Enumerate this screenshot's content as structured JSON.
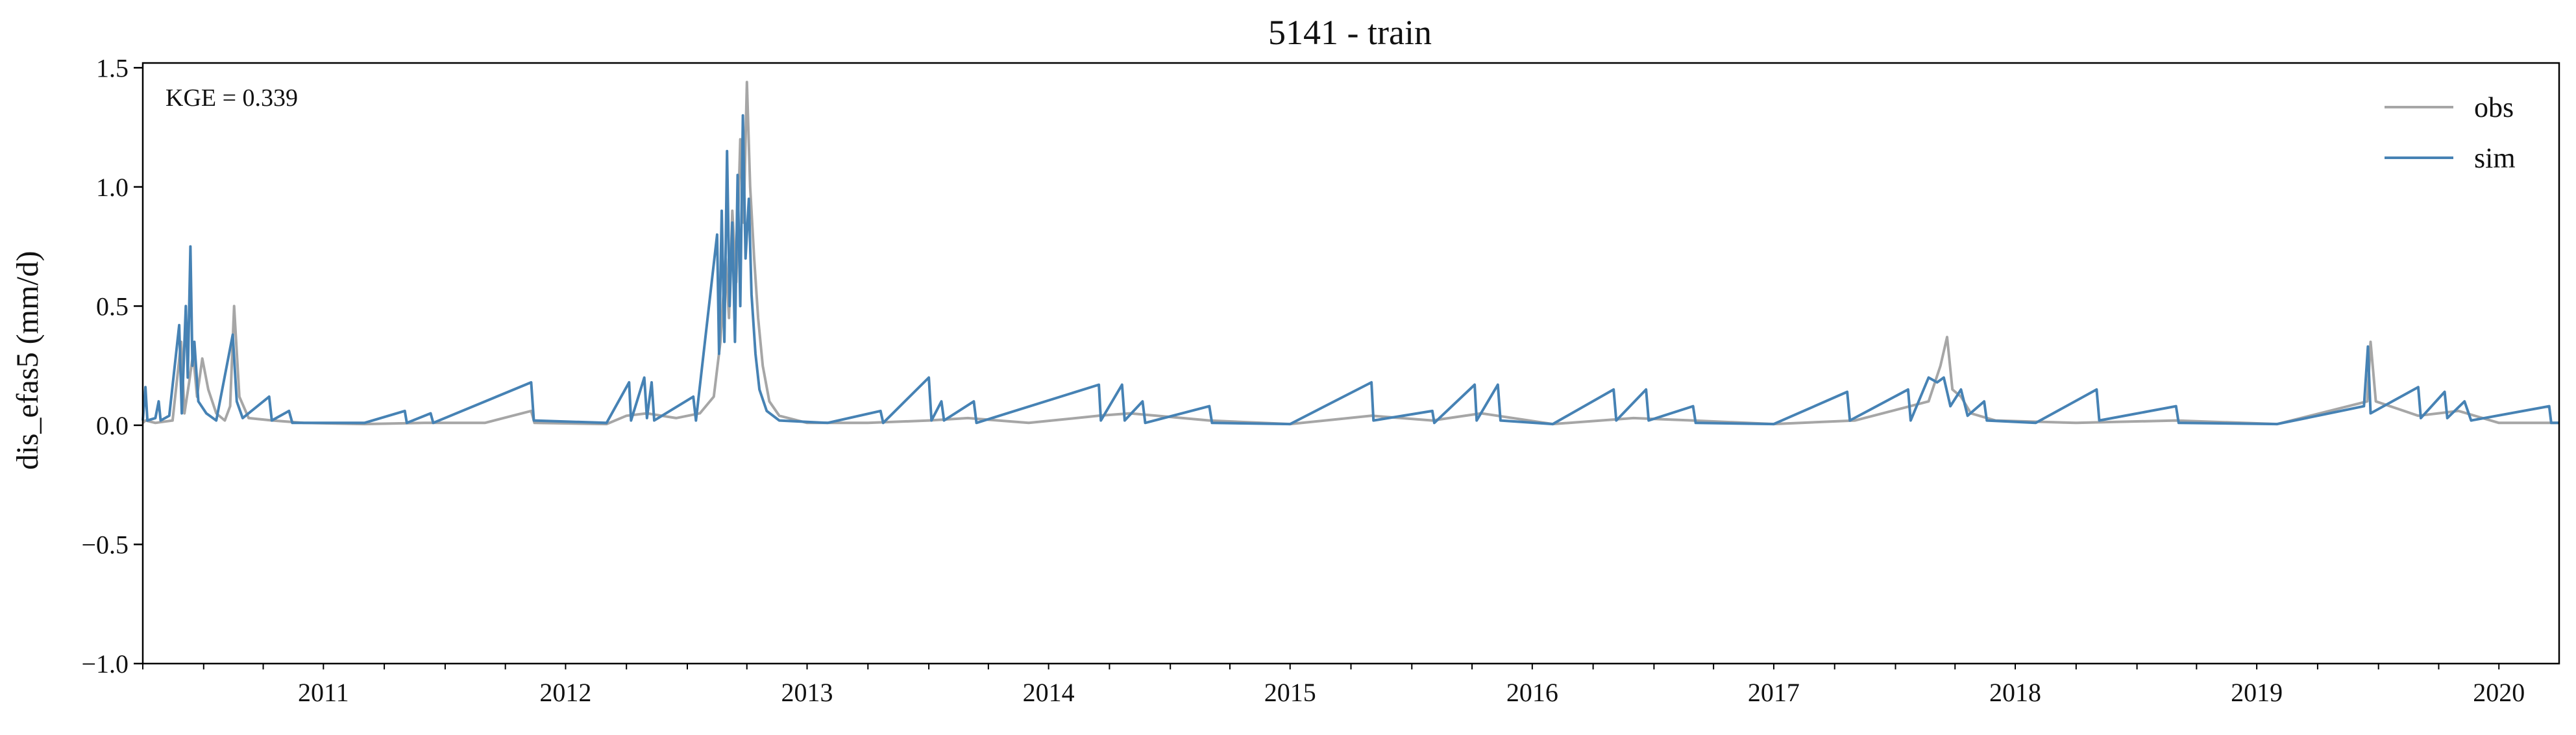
{
  "chart_data": {
    "type": "line",
    "title": "5141 - train",
    "xlabel": "",
    "ylabel": "dis_efas5 (mm/d)",
    "annotation": "KGE = 0.339",
    "legend_position": "top-right",
    "grid": false,
    "xlim": [
      "2010-10-01",
      "2020-09-30"
    ],
    "ylim": [
      -1.0,
      1.52
    ],
    "y_ticks": [
      -1.0,
      -0.5,
      0.0,
      0.5,
      1.0,
      1.5
    ],
    "y_tick_labels": [
      "−1.0",
      "−0.5",
      "0.0",
      "0.5",
      "1.0",
      "1.5"
    ],
    "x_tick_labels": [
      "2011",
      "2012",
      "2013",
      "2014",
      "2015",
      "2016",
      "2017",
      "2018",
      "2019",
      "2020"
    ],
    "series": [
      {
        "name": "obs",
        "color": "#a6a6a6",
        "points": [
          [
            "2010-10-01",
            0.01
          ],
          [
            "2010-10-05",
            0.02
          ],
          [
            "2010-10-20",
            0.01
          ],
          [
            "2010-11-15",
            0.02
          ],
          [
            "2010-11-28",
            0.35
          ],
          [
            "2010-12-03",
            0.05
          ],
          [
            "2010-12-10",
            0.18
          ],
          [
            "2010-12-16",
            0.3
          ],
          [
            "2010-12-22",
            0.12
          ],
          [
            "2010-12-30",
            0.28
          ],
          [
            "2011-01-08",
            0.15
          ],
          [
            "2011-01-20",
            0.05
          ],
          [
            "2011-02-02",
            0.02
          ],
          [
            "2011-02-10",
            0.08
          ],
          [
            "2011-02-16",
            0.5
          ],
          [
            "2011-02-24",
            0.12
          ],
          [
            "2011-03-10",
            0.03
          ],
          [
            "2011-04-15",
            0.02
          ],
          [
            "2011-06-01",
            0.01
          ],
          [
            "2011-09-01",
            0.005
          ],
          [
            "2011-12-01",
            0.01
          ],
          [
            "2012-03-01",
            0.01
          ],
          [
            "2012-05-10",
            0.06
          ],
          [
            "2012-05-15",
            0.01
          ],
          [
            "2012-09-01",
            0.005
          ],
          [
            "2012-10-01",
            0.04
          ],
          [
            "2012-11-01",
            0.05
          ],
          [
            "2012-12-15",
            0.03
          ],
          [
            "2013-01-20",
            0.05
          ],
          [
            "2013-02-10",
            0.12
          ],
          [
            "2013-02-20",
            0.35
          ],
          [
            "2013-02-28",
            0.7
          ],
          [
            "2013-03-05",
            0.45
          ],
          [
            "2013-03-10",
            0.9
          ],
          [
            "2013-03-16",
            0.6
          ],
          [
            "2013-03-22",
            1.2
          ],
          [
            "2013-03-27",
            0.85
          ],
          [
            "2013-04-01",
            1.44
          ],
          [
            "2013-04-06",
            1.0
          ],
          [
            "2013-04-12",
            0.7
          ],
          [
            "2013-04-18",
            0.45
          ],
          [
            "2013-04-25",
            0.25
          ],
          [
            "2013-05-05",
            0.1
          ],
          [
            "2013-05-20",
            0.04
          ],
          [
            "2013-07-01",
            0.01
          ],
          [
            "2013-10-01",
            0.01
          ],
          [
            "2014-01-01",
            0.02
          ],
          [
            "2014-03-01",
            0.03
          ],
          [
            "2014-06-01",
            0.01
          ],
          [
            "2014-09-15",
            0.04
          ],
          [
            "2014-11-01",
            0.05
          ],
          [
            "2015-03-01",
            0.02
          ],
          [
            "2015-07-01",
            0.005
          ],
          [
            "2015-11-01",
            0.04
          ],
          [
            "2016-02-01",
            0.02
          ],
          [
            "2016-04-15",
            0.05
          ],
          [
            "2016-08-01",
            0.005
          ],
          [
            "2016-12-01",
            0.03
          ],
          [
            "2017-03-01",
            0.02
          ],
          [
            "2017-07-01",
            0.005
          ],
          [
            "2017-11-01",
            0.02
          ],
          [
            "2018-02-20",
            0.1
          ],
          [
            "2018-03-10",
            0.25
          ],
          [
            "2018-03-20",
            0.37
          ],
          [
            "2018-03-28",
            0.15
          ],
          [
            "2018-04-10",
            0.12
          ],
          [
            "2018-04-25",
            0.05
          ],
          [
            "2018-06-01",
            0.02
          ],
          [
            "2018-10-01",
            0.01
          ],
          [
            "2019-03-01",
            0.02
          ],
          [
            "2019-08-01",
            0.005
          ],
          [
            "2019-12-15",
            0.1
          ],
          [
            "2019-12-20",
            0.35
          ],
          [
            "2019-12-28",
            0.1
          ],
          [
            "2020-03-01",
            0.04
          ],
          [
            "2020-05-01",
            0.06
          ],
          [
            "2020-07-01",
            0.01
          ],
          [
            "2020-09-30",
            0.01
          ]
        ]
      },
      {
        "name": "sim",
        "color": "#4682b4",
        "points": [
          [
            "2010-10-01",
            0.02
          ],
          [
            "2010-10-05",
            0.16
          ],
          [
            "2010-10-08",
            0.02
          ],
          [
            "2010-10-20",
            0.03
          ],
          [
            "2010-10-25",
            0.1
          ],
          [
            "2010-10-28",
            0.02
          ],
          [
            "2010-11-10",
            0.04
          ],
          [
            "2010-11-25",
            0.42
          ],
          [
            "2010-11-29",
            0.05
          ],
          [
            "2010-12-05",
            0.5
          ],
          [
            "2010-12-08",
            0.2
          ],
          [
            "2010-12-12",
            0.75
          ],
          [
            "2010-12-15",
            0.25
          ],
          [
            "2010-12-18",
            0.35
          ],
          [
            "2010-12-24",
            0.1
          ],
          [
            "2011-01-05",
            0.05
          ],
          [
            "2011-01-20",
            0.02
          ],
          [
            "2011-02-14",
            0.38
          ],
          [
            "2011-02-20",
            0.1
          ],
          [
            "2011-03-01",
            0.03
          ],
          [
            "2011-04-10",
            0.12
          ],
          [
            "2011-04-14",
            0.02
          ],
          [
            "2011-05-10",
            0.06
          ],
          [
            "2011-05-15",
            0.01
          ],
          [
            "2011-09-01",
            0.01
          ],
          [
            "2011-11-01",
            0.06
          ],
          [
            "2011-11-04",
            0.01
          ],
          [
            "2011-12-10",
            0.05
          ],
          [
            "2011-12-14",
            0.01
          ],
          [
            "2012-05-10",
            0.18
          ],
          [
            "2012-05-14",
            0.02
          ],
          [
            "2012-09-01",
            0.01
          ],
          [
            "2012-10-05",
            0.18
          ],
          [
            "2012-10-08",
            0.02
          ],
          [
            "2012-10-28",
            0.2
          ],
          [
            "2012-11-01",
            0.03
          ],
          [
            "2012-11-08",
            0.18
          ],
          [
            "2012-11-12",
            0.02
          ],
          [
            "2013-01-10",
            0.12
          ],
          [
            "2013-01-14",
            0.02
          ],
          [
            "2013-02-15",
            0.8
          ],
          [
            "2013-02-18",
            0.3
          ],
          [
            "2013-02-22",
            0.9
          ],
          [
            "2013-02-26",
            0.35
          ],
          [
            "2013-03-02",
            1.15
          ],
          [
            "2013-03-06",
            0.5
          ],
          [
            "2013-03-10",
            0.85
          ],
          [
            "2013-03-14",
            0.35
          ],
          [
            "2013-03-18",
            1.05
          ],
          [
            "2013-03-22",
            0.5
          ],
          [
            "2013-03-26",
            1.3
          ],
          [
            "2013-03-30",
            0.7
          ],
          [
            "2013-04-04",
            0.95
          ],
          [
            "2013-04-08",
            0.55
          ],
          [
            "2013-04-14",
            0.3
          ],
          [
            "2013-04-20",
            0.15
          ],
          [
            "2013-05-01",
            0.06
          ],
          [
            "2013-05-20",
            0.02
          ],
          [
            "2013-08-01",
            0.01
          ],
          [
            "2013-10-20",
            0.06
          ],
          [
            "2013-10-24",
            0.01
          ],
          [
            "2014-01-01",
            0.2
          ],
          [
            "2014-01-05",
            0.02
          ],
          [
            "2014-01-20",
            0.1
          ],
          [
            "2014-01-24",
            0.02
          ],
          [
            "2014-03-10",
            0.1
          ],
          [
            "2014-03-14",
            0.01
          ],
          [
            "2014-09-15",
            0.17
          ],
          [
            "2014-09-18",
            0.02
          ],
          [
            "2014-10-20",
            0.17
          ],
          [
            "2014-10-24",
            0.02
          ],
          [
            "2014-11-20",
            0.1
          ],
          [
            "2014-11-24",
            0.01
          ],
          [
            "2015-03-01",
            0.08
          ],
          [
            "2015-03-05",
            0.01
          ],
          [
            "2015-07-01",
            0.005
          ],
          [
            "2015-11-01",
            0.18
          ],
          [
            "2015-11-04",
            0.02
          ],
          [
            "2016-02-01",
            0.06
          ],
          [
            "2016-02-04",
            0.01
          ],
          [
            "2016-04-05",
            0.17
          ],
          [
            "2016-04-08",
            0.02
          ],
          [
            "2016-05-10",
            0.17
          ],
          [
            "2016-05-14",
            0.02
          ],
          [
            "2016-08-01",
            0.005
          ],
          [
            "2016-11-01",
            0.15
          ],
          [
            "2016-11-05",
            0.02
          ],
          [
            "2016-12-20",
            0.15
          ],
          [
            "2016-12-24",
            0.02
          ],
          [
            "2017-03-01",
            0.08
          ],
          [
            "2017-03-05",
            0.01
          ],
          [
            "2017-07-01",
            0.005
          ],
          [
            "2017-10-20",
            0.14
          ],
          [
            "2017-10-24",
            0.02
          ],
          [
            "2018-01-20",
            0.15
          ],
          [
            "2018-01-24",
            0.02
          ],
          [
            "2018-02-20",
            0.2
          ],
          [
            "2018-03-05",
            0.18
          ],
          [
            "2018-03-15",
            0.2
          ],
          [
            "2018-03-25",
            0.08
          ],
          [
            "2018-04-10",
            0.15
          ],
          [
            "2018-04-20",
            0.04
          ],
          [
            "2018-05-15",
            0.1
          ],
          [
            "2018-05-19",
            0.02
          ],
          [
            "2018-08-01",
            0.01
          ],
          [
            "2018-11-01",
            0.15
          ],
          [
            "2018-11-05",
            0.02
          ],
          [
            "2019-03-01",
            0.08
          ],
          [
            "2019-03-05",
            0.01
          ],
          [
            "2019-08-01",
            0.005
          ],
          [
            "2019-12-10",
            0.08
          ],
          [
            "2019-12-16",
            0.33
          ],
          [
            "2019-12-20",
            0.05
          ],
          [
            "2020-03-01",
            0.16
          ],
          [
            "2020-03-05",
            0.03
          ],
          [
            "2020-04-10",
            0.14
          ],
          [
            "2020-04-14",
            0.03
          ],
          [
            "2020-05-10",
            0.1
          ],
          [
            "2020-05-20",
            0.02
          ],
          [
            "2020-09-15",
            0.08
          ],
          [
            "2020-09-18",
            0.01
          ],
          [
            "2020-09-30",
            0.01
          ]
        ]
      }
    ]
  }
}
